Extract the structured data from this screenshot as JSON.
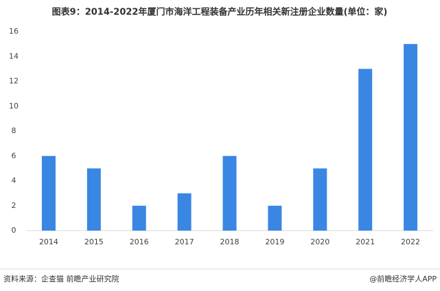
{
  "chart_data": {
    "type": "bar",
    "title": "图表9：2014-2022年厦门市海洋工程装备产业历年相关新注册企业数量(单位：家)",
    "categories": [
      "2014",
      "2015",
      "2016",
      "2017",
      "2018",
      "2019",
      "2020",
      "2021",
      "2022"
    ],
    "values": [
      6,
      5,
      2,
      3,
      6,
      2,
      5,
      13,
      15
    ],
    "color": "#3a86e3",
    "ylim": [
      0,
      16
    ],
    "yticks": [
      0,
      2,
      4,
      6,
      8,
      10,
      12,
      14,
      16
    ],
    "grid": false
  },
  "footer": {
    "source": "资料来源：企查猫 前瞻产业研究院",
    "brand": "@前瞻经济学人APP"
  }
}
